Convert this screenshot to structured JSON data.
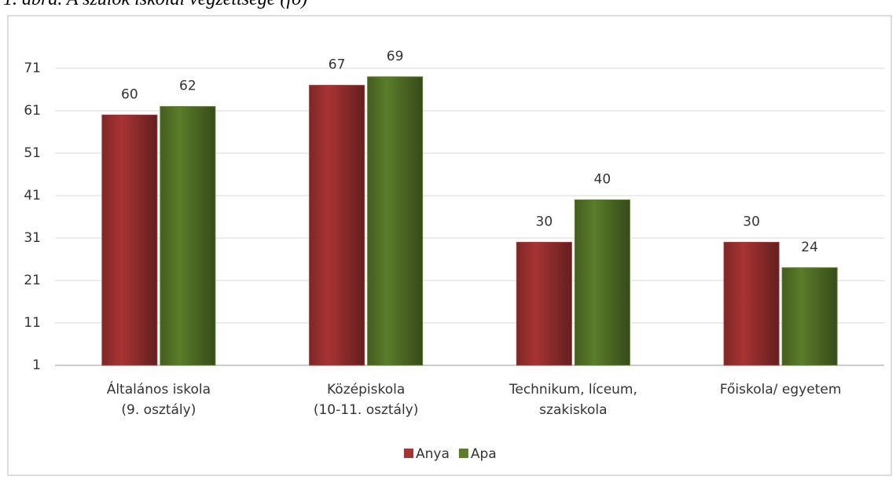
{
  "caption": "1. ábra. A szülők iskolai végzettsége (fő)",
  "chart_data": {
    "type": "bar",
    "categories": [
      "Általános iskola\n(9. osztály)",
      "Középiskola\n(10-11. osztály)",
      "Technikum, líceum,\nszakiskola",
      "Főiskola/ egyetem"
    ],
    "series": [
      {
        "name": "Anya",
        "color": "#a83434",
        "values": [
          60,
          67,
          30,
          30
        ]
      },
      {
        "name": "Apa",
        "color": "#5b7d2a",
        "values": [
          62,
          69,
          40,
          24
        ]
      }
    ],
    "ylim": [
      1,
      75
    ],
    "yticks": [
      1,
      11,
      21,
      31,
      41,
      51,
      61,
      71
    ],
    "grid": true,
    "legend": "bottom"
  }
}
